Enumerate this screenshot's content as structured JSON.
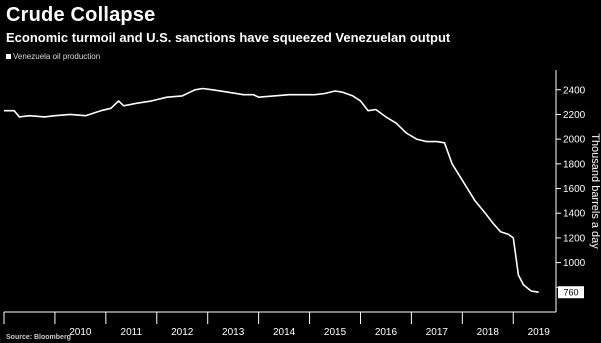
{
  "chart_data": {
    "type": "line",
    "title": "Crude Collapse",
    "subtitle": "Economic turmoil and U.S. sanctions have squeezed Venezuelan output",
    "legend_position": "top-left",
    "series": [
      {
        "name": "Venezuela oil production",
        "color": "#ffffff",
        "x": [
          2009.0,
          2009.2,
          2009.3,
          2009.5,
          2009.8,
          2010.0,
          2010.3,
          2010.6,
          2010.9,
          2011.1,
          2011.25,
          2011.35,
          2011.6,
          2011.9,
          2012.2,
          2012.5,
          2012.75,
          2012.9,
          2013.1,
          2013.4,
          2013.7,
          2013.9,
          2014.0,
          2014.3,
          2014.6,
          2014.9,
          2015.1,
          2015.3,
          2015.5,
          2015.65,
          2015.85,
          2016.0,
          2016.15,
          2016.3,
          2016.5,
          2016.7,
          2016.9,
          2017.1,
          2017.3,
          2017.5,
          2017.65,
          2017.8,
          2017.95,
          2018.1,
          2018.25,
          2018.45,
          2018.6,
          2018.75,
          2018.9,
          2019.0,
          2019.1,
          2019.2,
          2019.35,
          2019.5
        ],
        "values": [
          2230,
          2230,
          2180,
          2190,
          2180,
          2190,
          2200,
          2190,
          2230,
          2250,
          2310,
          2270,
          2290,
          2310,
          2340,
          2350,
          2400,
          2410,
          2400,
          2380,
          2360,
          2360,
          2340,
          2350,
          2360,
          2360,
          2360,
          2370,
          2390,
          2380,
          2350,
          2310,
          2230,
          2240,
          2180,
          2130,
          2050,
          2000,
          1980,
          1980,
          1970,
          1800,
          1700,
          1600,
          1500,
          1400,
          1320,
          1250,
          1230,
          1200,
          900,
          820,
          770,
          760
        ]
      }
    ],
    "xlim": [
      2009.0,
      2019.8
    ],
    "ylim": [
      600,
      2560
    ],
    "x_tick_labels": [
      {
        "x": 2010,
        "label": "2010"
      },
      {
        "x": 2011,
        "label": "2011"
      },
      {
        "x": 2012,
        "label": "2012"
      },
      {
        "x": 2013,
        "label": "2013"
      },
      {
        "x": 2014,
        "label": "2014"
      },
      {
        "x": 2015,
        "label": "2015"
      },
      {
        "x": 2016,
        "label": "2016"
      },
      {
        "x": 2017,
        "label": "2017"
      },
      {
        "x": 2018,
        "label": "2018"
      },
      {
        "x": 2019,
        "label": "2019"
      }
    ],
    "y_ticks": [
      800,
      1000,
      1200,
      1400,
      1600,
      1800,
      2000,
      2200,
      2400
    ],
    "y_tick_labels": [
      "",
      "1000",
      "1200",
      "1400",
      "1600",
      "1800",
      "2000",
      "2200",
      "2400"
    ],
    "ylabel": "Thousand barrels a day",
    "last_value_label": "760",
    "grid": false,
    "source": "Source: Bloomberg"
  }
}
